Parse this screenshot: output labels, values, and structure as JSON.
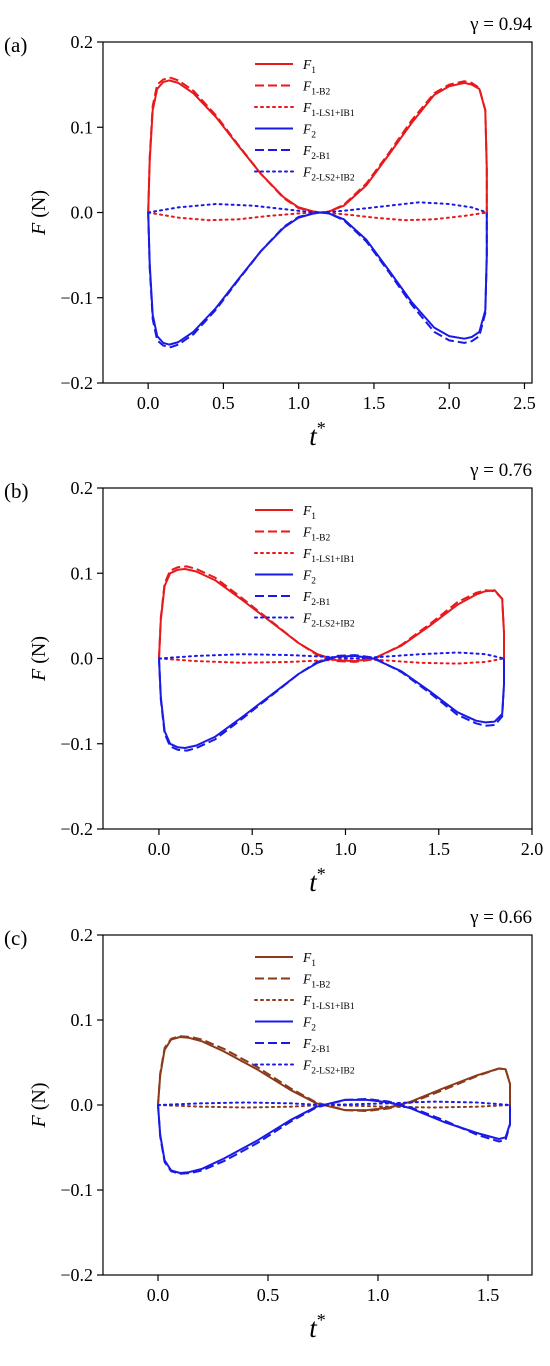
{
  "chart_data": [
    {
      "type": "line",
      "panel_label": "(a)",
      "annotation": "γ = 0.94",
      "xlabel": "t",
      "xlabel_sup": "*",
      "ylabel": "F (N)",
      "xlim": [
        -0.3,
        2.55
      ],
      "ylim": [
        -0.2,
        0.2
      ],
      "xticks": [
        0.0,
        0.5,
        1.0,
        1.5,
        2.0,
        2.5
      ],
      "xtick_labels": [
        "0.0",
        "0.5",
        "1.0",
        "1.5",
        "2.0",
        "2.5"
      ],
      "yticks": [
        0.2,
        0.1,
        0.0,
        -0.1,
        -0.2
      ],
      "ytick_labels": [
        "0.2",
        "0.1",
        "0.0",
        "−0.1",
        "−0.2"
      ],
      "legend_position": "top-center",
      "series": [
        {
          "name": "F1",
          "label_main": "F",
          "label_sub": "1",
          "color": "#e8191c",
          "dash": "solid",
          "x": [
            0,
            0.01,
            0.03,
            0.06,
            0.1,
            0.14,
            0.2,
            0.3,
            0.45,
            0.6,
            0.75,
            0.9,
            1.0,
            1.1,
            1.15,
            1.2,
            1.3,
            1.45,
            1.6,
            1.75,
            1.9,
            2.0,
            2.1,
            2.15,
            2.2,
            2.24,
            2.25,
            2.25
          ],
          "y": [
            0,
            0.06,
            0.12,
            0.145,
            0.153,
            0.155,
            0.152,
            0.14,
            0.112,
            0.078,
            0.045,
            0.018,
            0.006,
            0.001,
            0,
            0.001,
            0.008,
            0.032,
            0.068,
            0.105,
            0.138,
            0.148,
            0.152,
            0.15,
            0.145,
            0.12,
            0.05,
            0
          ]
        },
        {
          "name": "F1-B2",
          "label_main": "F",
          "label_sub": "1-B2",
          "color": "#e8191c",
          "dash": "dashed",
          "x": [
            0,
            0.01,
            0.03,
            0.06,
            0.1,
            0.15,
            0.2,
            0.3,
            0.45,
            0.6,
            0.75,
            0.9,
            1.0,
            1.1,
            1.15,
            1.2,
            1.3,
            1.45,
            1.6,
            1.75,
            1.9,
            2.0,
            2.1,
            2.15,
            2.2,
            2.24,
            2.25,
            2.25
          ],
          "y": [
            0,
            0.065,
            0.125,
            0.15,
            0.156,
            0.158,
            0.155,
            0.143,
            0.114,
            0.079,
            0.045,
            0.017,
            0.005,
            0.001,
            0,
            0.001,
            0.009,
            0.034,
            0.07,
            0.108,
            0.14,
            0.15,
            0.154,
            0.152,
            0.146,
            0.12,
            0.05,
            0
          ]
        },
        {
          "name": "F1-LS1+IB1",
          "label_main": "F",
          "label_sub": "1-LS1+IB1",
          "color": "#e8191c",
          "dash": "dotted",
          "x": [
            0,
            0.2,
            0.4,
            0.6,
            0.8,
            1.0,
            1.15,
            1.3,
            1.5,
            1.7,
            1.9,
            2.1,
            2.25
          ],
          "y": [
            0,
            -0.006,
            -0.009,
            -0.008,
            -0.004,
            -0.001,
            0,
            -0.002,
            -0.006,
            -0.009,
            -0.008,
            -0.004,
            0
          ]
        },
        {
          "name": "F2",
          "label_main": "F",
          "label_sub": "2",
          "color": "#1a1ae6",
          "dash": "solid",
          "x": [
            0,
            0.01,
            0.03,
            0.06,
            0.1,
            0.14,
            0.2,
            0.3,
            0.45,
            0.6,
            0.75,
            0.9,
            1.0,
            1.1,
            1.15,
            1.2,
            1.3,
            1.45,
            1.6,
            1.75,
            1.9,
            2.0,
            2.1,
            2.15,
            2.2,
            2.24,
            2.25,
            2.25
          ],
          "y": [
            0,
            -0.06,
            -0.12,
            -0.145,
            -0.153,
            -0.155,
            -0.152,
            -0.14,
            -0.112,
            -0.078,
            -0.045,
            -0.018,
            -0.006,
            -0.001,
            0,
            -0.001,
            -0.008,
            -0.032,
            -0.068,
            -0.105,
            -0.135,
            -0.145,
            -0.148,
            -0.146,
            -0.14,
            -0.115,
            -0.05,
            0
          ]
        },
        {
          "name": "F2-B1",
          "label_main": "F",
          "label_sub": "2-B1",
          "color": "#1a1ae6",
          "dash": "dashed",
          "x": [
            0,
            0.01,
            0.03,
            0.06,
            0.1,
            0.15,
            0.2,
            0.3,
            0.45,
            0.6,
            0.75,
            0.9,
            1.0,
            1.1,
            1.15,
            1.2,
            1.3,
            1.45,
            1.6,
            1.75,
            1.9,
            2.0,
            2.1,
            2.15,
            2.2,
            2.24,
            2.25,
            2.25
          ],
          "y": [
            0,
            -0.065,
            -0.125,
            -0.15,
            -0.156,
            -0.158,
            -0.155,
            -0.143,
            -0.114,
            -0.079,
            -0.045,
            -0.017,
            -0.005,
            -0.001,
            0,
            -0.001,
            -0.009,
            -0.034,
            -0.07,
            -0.108,
            -0.14,
            -0.15,
            -0.153,
            -0.151,
            -0.145,
            -0.118,
            -0.05,
            0
          ]
        },
        {
          "name": "F2-LS2+IB2",
          "label_main": "F",
          "label_sub": "2-LS2+IB2",
          "color": "#1a1ae6",
          "dash": "dotted",
          "x": [
            0,
            0.2,
            0.45,
            0.7,
            0.9,
            1.05,
            1.15,
            1.3,
            1.5,
            1.8,
            2.0,
            2.15,
            2.25
          ],
          "y": [
            0,
            0.006,
            0.01,
            0.008,
            0.004,
            0.001,
            0,
            0.002,
            0.006,
            0.012,
            0.01,
            0.006,
            0
          ]
        }
      ]
    },
    {
      "type": "line",
      "panel_label": "(b)",
      "annotation": "γ = 0.76",
      "xlabel": "t",
      "xlabel_sup": "*",
      "ylabel": "F (N)",
      "xlim": [
        -0.3,
        2.0
      ],
      "ylim": [
        -0.2,
        0.2
      ],
      "xticks": [
        0.0,
        0.5,
        1.0,
        1.5,
        2.0
      ],
      "xtick_labels": [
        "0.0",
        "0.5",
        "1.0",
        "1.5",
        "2.0"
      ],
      "yticks": [
        0.2,
        0.1,
        0.0,
        -0.1,
        -0.2
      ],
      "ytick_labels": [
        "0.2",
        "0.1",
        "0.0",
        "−0.1",
        "−0.2"
      ],
      "legend_position": "top-center",
      "series": [
        {
          "name": "F1",
          "label_main": "F",
          "label_sub": "1",
          "color": "#e8191c",
          "dash": "solid",
          "x": [
            0,
            0.01,
            0.03,
            0.06,
            0.1,
            0.14,
            0.2,
            0.3,
            0.45,
            0.6,
            0.75,
            0.85,
            0.95,
            1.05,
            1.15,
            1.3,
            1.45,
            1.6,
            1.7,
            1.75,
            1.8,
            1.84,
            1.85,
            1.85
          ],
          "y": [
            0,
            0.045,
            0.085,
            0.1,
            0.104,
            0.105,
            0.102,
            0.092,
            0.068,
            0.043,
            0.018,
            0.005,
            -0.002,
            -0.003,
            0,
            0.015,
            0.038,
            0.063,
            0.075,
            0.079,
            0.08,
            0.07,
            0.03,
            0
          ]
        },
        {
          "name": "F1-B2",
          "label_main": "F",
          "label_sub": "1-B2",
          "color": "#e8191c",
          "dash": "dashed",
          "x": [
            0,
            0.01,
            0.03,
            0.06,
            0.1,
            0.15,
            0.2,
            0.3,
            0.45,
            0.6,
            0.75,
            0.85,
            0.95,
            1.05,
            1.15,
            1.3,
            1.45,
            1.6,
            1.7,
            1.75,
            1.8,
            1.84,
            1.85,
            1.85
          ],
          "y": [
            0,
            0.048,
            0.088,
            0.103,
            0.107,
            0.108,
            0.105,
            0.095,
            0.07,
            0.044,
            0.018,
            0.004,
            -0.003,
            -0.004,
            -0.001,
            0.016,
            0.04,
            0.066,
            0.077,
            0.08,
            0.079,
            0.07,
            0.03,
            0
          ]
        },
        {
          "name": "F1-LS1+IB1",
          "label_main": "F",
          "label_sub": "1-LS1+IB1",
          "color": "#e8191c",
          "dash": "dotted",
          "x": [
            0,
            0.2,
            0.45,
            0.7,
            0.9,
            1.05,
            1.2,
            1.4,
            1.6,
            1.75,
            1.85
          ],
          "y": [
            0,
            -0.003,
            -0.005,
            -0.004,
            -0.002,
            0,
            -0.002,
            -0.005,
            -0.006,
            -0.004,
            0
          ]
        },
        {
          "name": "F2",
          "label_main": "F",
          "label_sub": "2",
          "color": "#1a1ae6",
          "dash": "solid",
          "x": [
            0,
            0.01,
            0.03,
            0.06,
            0.1,
            0.14,
            0.2,
            0.3,
            0.45,
            0.6,
            0.75,
            0.85,
            0.95,
            1.05,
            1.15,
            1.3,
            1.45,
            1.6,
            1.7,
            1.75,
            1.8,
            1.84,
            1.85,
            1.85
          ],
          "y": [
            0,
            -0.045,
            -0.085,
            -0.1,
            -0.104,
            -0.105,
            -0.102,
            -0.092,
            -0.068,
            -0.043,
            -0.018,
            -0.005,
            0.002,
            0.003,
            0,
            -0.015,
            -0.038,
            -0.063,
            -0.073,
            -0.075,
            -0.074,
            -0.065,
            -0.03,
            0
          ]
        },
        {
          "name": "F2-B1",
          "label_main": "F",
          "label_sub": "2-B1",
          "color": "#1a1ae6",
          "dash": "dashed",
          "x": [
            0,
            0.01,
            0.03,
            0.06,
            0.1,
            0.15,
            0.2,
            0.3,
            0.45,
            0.6,
            0.75,
            0.85,
            0.95,
            1.05,
            1.15,
            1.3,
            1.45,
            1.6,
            1.7,
            1.75,
            1.8,
            1.84,
            1.85,
            1.85
          ],
          "y": [
            0,
            -0.048,
            -0.088,
            -0.103,
            -0.107,
            -0.108,
            -0.105,
            -0.095,
            -0.07,
            -0.044,
            -0.018,
            -0.004,
            0.003,
            0.004,
            0.001,
            -0.016,
            -0.04,
            -0.066,
            -0.076,
            -0.079,
            -0.078,
            -0.068,
            -0.03,
            0
          ]
        },
        {
          "name": "F2-LS2+IB2",
          "label_main": "F",
          "label_sub": "2-LS2+IB2",
          "color": "#1a1ae6",
          "dash": "dotted",
          "x": [
            0,
            0.2,
            0.45,
            0.7,
            0.9,
            1.05,
            1.2,
            1.4,
            1.6,
            1.75,
            1.85
          ],
          "y": [
            0,
            0.003,
            0.005,
            0.004,
            0.002,
            0,
            0.002,
            0.005,
            0.007,
            0.005,
            0
          ]
        }
      ]
    },
    {
      "type": "line",
      "panel_label": "(c)",
      "annotation": "γ = 0.66",
      "xlabel": "t",
      "xlabel_sup": "*",
      "ylabel": "F (N)",
      "xlim": [
        -0.25,
        1.7
      ],
      "ylim": [
        -0.2,
        0.2
      ],
      "xticks": [
        0.0,
        0.5,
        1.0,
        1.5
      ],
      "xtick_labels": [
        "0.0",
        "0.5",
        "1.0",
        "1.5"
      ],
      "yticks": [
        0.2,
        0.1,
        0.0,
        -0.1,
        -0.2
      ],
      "ytick_labels": [
        "0.2",
        "0.1",
        "0.0",
        "−0.1",
        "−0.2"
      ],
      "legend_position": "top-center",
      "series": [
        {
          "name": "F1",
          "label_main": "F",
          "label_sub": "1",
          "color": "#8b3a1a",
          "dash": "solid",
          "x": [
            0,
            0.01,
            0.03,
            0.06,
            0.1,
            0.14,
            0.2,
            0.3,
            0.45,
            0.6,
            0.72,
            0.85,
            0.95,
            1.05,
            1.15,
            1.3,
            1.45,
            1.55,
            1.58,
            1.6,
            1.6
          ],
          "y": [
            0,
            0.035,
            0.065,
            0.077,
            0.08,
            0.079,
            0.075,
            0.063,
            0.042,
            0.018,
            0.002,
            -0.006,
            -0.006,
            -0.003,
            0.004,
            0.02,
            0.035,
            0.043,
            0.042,
            0.025,
            0
          ]
        },
        {
          "name": "F1-B2",
          "label_main": "F",
          "label_sub": "1-B2",
          "color": "#8b3a1a",
          "dash": "dashed",
          "x": [
            0,
            0.01,
            0.03,
            0.06,
            0.1,
            0.15,
            0.2,
            0.3,
            0.45,
            0.6,
            0.72,
            0.85,
            0.95,
            1.05,
            1.15,
            1.3,
            1.45,
            1.55,
            1.58,
            1.6,
            1.6
          ],
          "y": [
            0,
            0.037,
            0.067,
            0.078,
            0.081,
            0.08,
            0.077,
            0.066,
            0.045,
            0.02,
            0.003,
            -0.006,
            -0.007,
            -0.004,
            0.003,
            0.018,
            0.034,
            0.043,
            0.042,
            0.025,
            0
          ]
        },
        {
          "name": "F1-LS1+IB1",
          "label_main": "F",
          "label_sub": "1-LS1+IB1",
          "color": "#8b3a1a",
          "dash": "dotted",
          "x": [
            0,
            0.2,
            0.4,
            0.6,
            0.75,
            0.9,
            1.05,
            1.25,
            1.45,
            1.6
          ],
          "y": [
            0,
            -0.002,
            -0.003,
            -0.002,
            0,
            -0.001,
            -0.002,
            -0.003,
            -0.002,
            0
          ]
        },
        {
          "name": "F2",
          "label_main": "F",
          "label_sub": "2",
          "color": "#1a1ae6",
          "dash": "solid",
          "x": [
            0,
            0.01,
            0.03,
            0.06,
            0.1,
            0.14,
            0.2,
            0.3,
            0.45,
            0.6,
            0.72,
            0.85,
            0.95,
            1.05,
            1.15,
            1.3,
            1.45,
            1.55,
            1.58,
            1.6,
            1.6
          ],
          "y": [
            0,
            -0.035,
            -0.065,
            -0.077,
            -0.08,
            -0.079,
            -0.075,
            -0.063,
            -0.042,
            -0.018,
            -0.002,
            0.006,
            0.006,
            0.003,
            -0.004,
            -0.02,
            -0.033,
            -0.04,
            -0.038,
            -0.022,
            0
          ]
        },
        {
          "name": "F2-B1",
          "label_main": "F",
          "label_sub": "2-B1",
          "color": "#1a1ae6",
          "dash": "dashed",
          "x": [
            0,
            0.01,
            0.03,
            0.06,
            0.1,
            0.15,
            0.2,
            0.3,
            0.45,
            0.6,
            0.72,
            0.85,
            0.95,
            1.05,
            1.15,
            1.3,
            1.45,
            1.55,
            1.58,
            1.6,
            1.6
          ],
          "y": [
            0,
            -0.037,
            -0.067,
            -0.078,
            -0.081,
            -0.08,
            -0.077,
            -0.066,
            -0.045,
            -0.02,
            -0.003,
            0.006,
            0.007,
            0.004,
            -0.003,
            -0.018,
            -0.035,
            -0.043,
            -0.041,
            -0.023,
            0
          ]
        },
        {
          "name": "F2-LS2+IB2",
          "label_main": "F",
          "label_sub": "2-LS2+IB2",
          "color": "#1a1ae6",
          "dash": "dotted",
          "x": [
            0,
            0.2,
            0.4,
            0.6,
            0.75,
            0.9,
            1.05,
            1.25,
            1.45,
            1.6
          ],
          "y": [
            0,
            0.002,
            0.003,
            0.002,
            0,
            0.001,
            0.002,
            0.004,
            0.003,
            0
          ]
        }
      ]
    }
  ]
}
